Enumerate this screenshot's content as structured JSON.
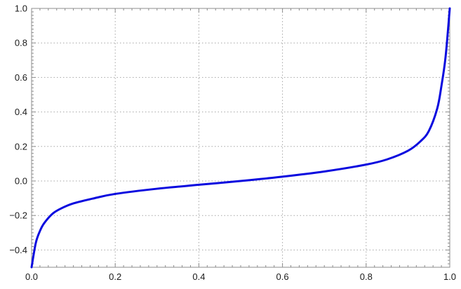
{
  "chart_data": {
    "type": "line",
    "title": "",
    "xlabel": "",
    "ylabel": "",
    "xlim": [
      0.0,
      1.0
    ],
    "ylim": [
      -0.5,
      1.0
    ],
    "x_ticks": [
      "0.0",
      "0.2",
      "0.4",
      "0.6",
      "0.8",
      "1.0"
    ],
    "y_ticks": [
      "-0.4",
      "-0.2",
      "0.0",
      "0.2",
      "0.4",
      "0.6",
      "0.8",
      "1.0"
    ],
    "grid": true,
    "legend": "none",
    "series": [
      {
        "color": "#0a0adf",
        "x": [
          0.0,
          0.01,
          0.02,
          0.03,
          0.05,
          0.07,
          0.1,
          0.15,
          0.2,
          0.3,
          0.4,
          0.5,
          0.6,
          0.7,
          0.8,
          0.85,
          0.9,
          0.93,
          0.95,
          0.97,
          0.98,
          0.99,
          1.0
        ],
        "y": [
          -0.5,
          -0.36,
          -0.29,
          -0.245,
          -0.19,
          -0.16,
          -0.13,
          -0.1,
          -0.075,
          -0.045,
          -0.022,
          0.0,
          0.025,
          0.055,
          0.095,
          0.125,
          0.175,
          0.23,
          0.29,
          0.42,
          0.55,
          0.72,
          1.0
        ]
      }
    ]
  }
}
